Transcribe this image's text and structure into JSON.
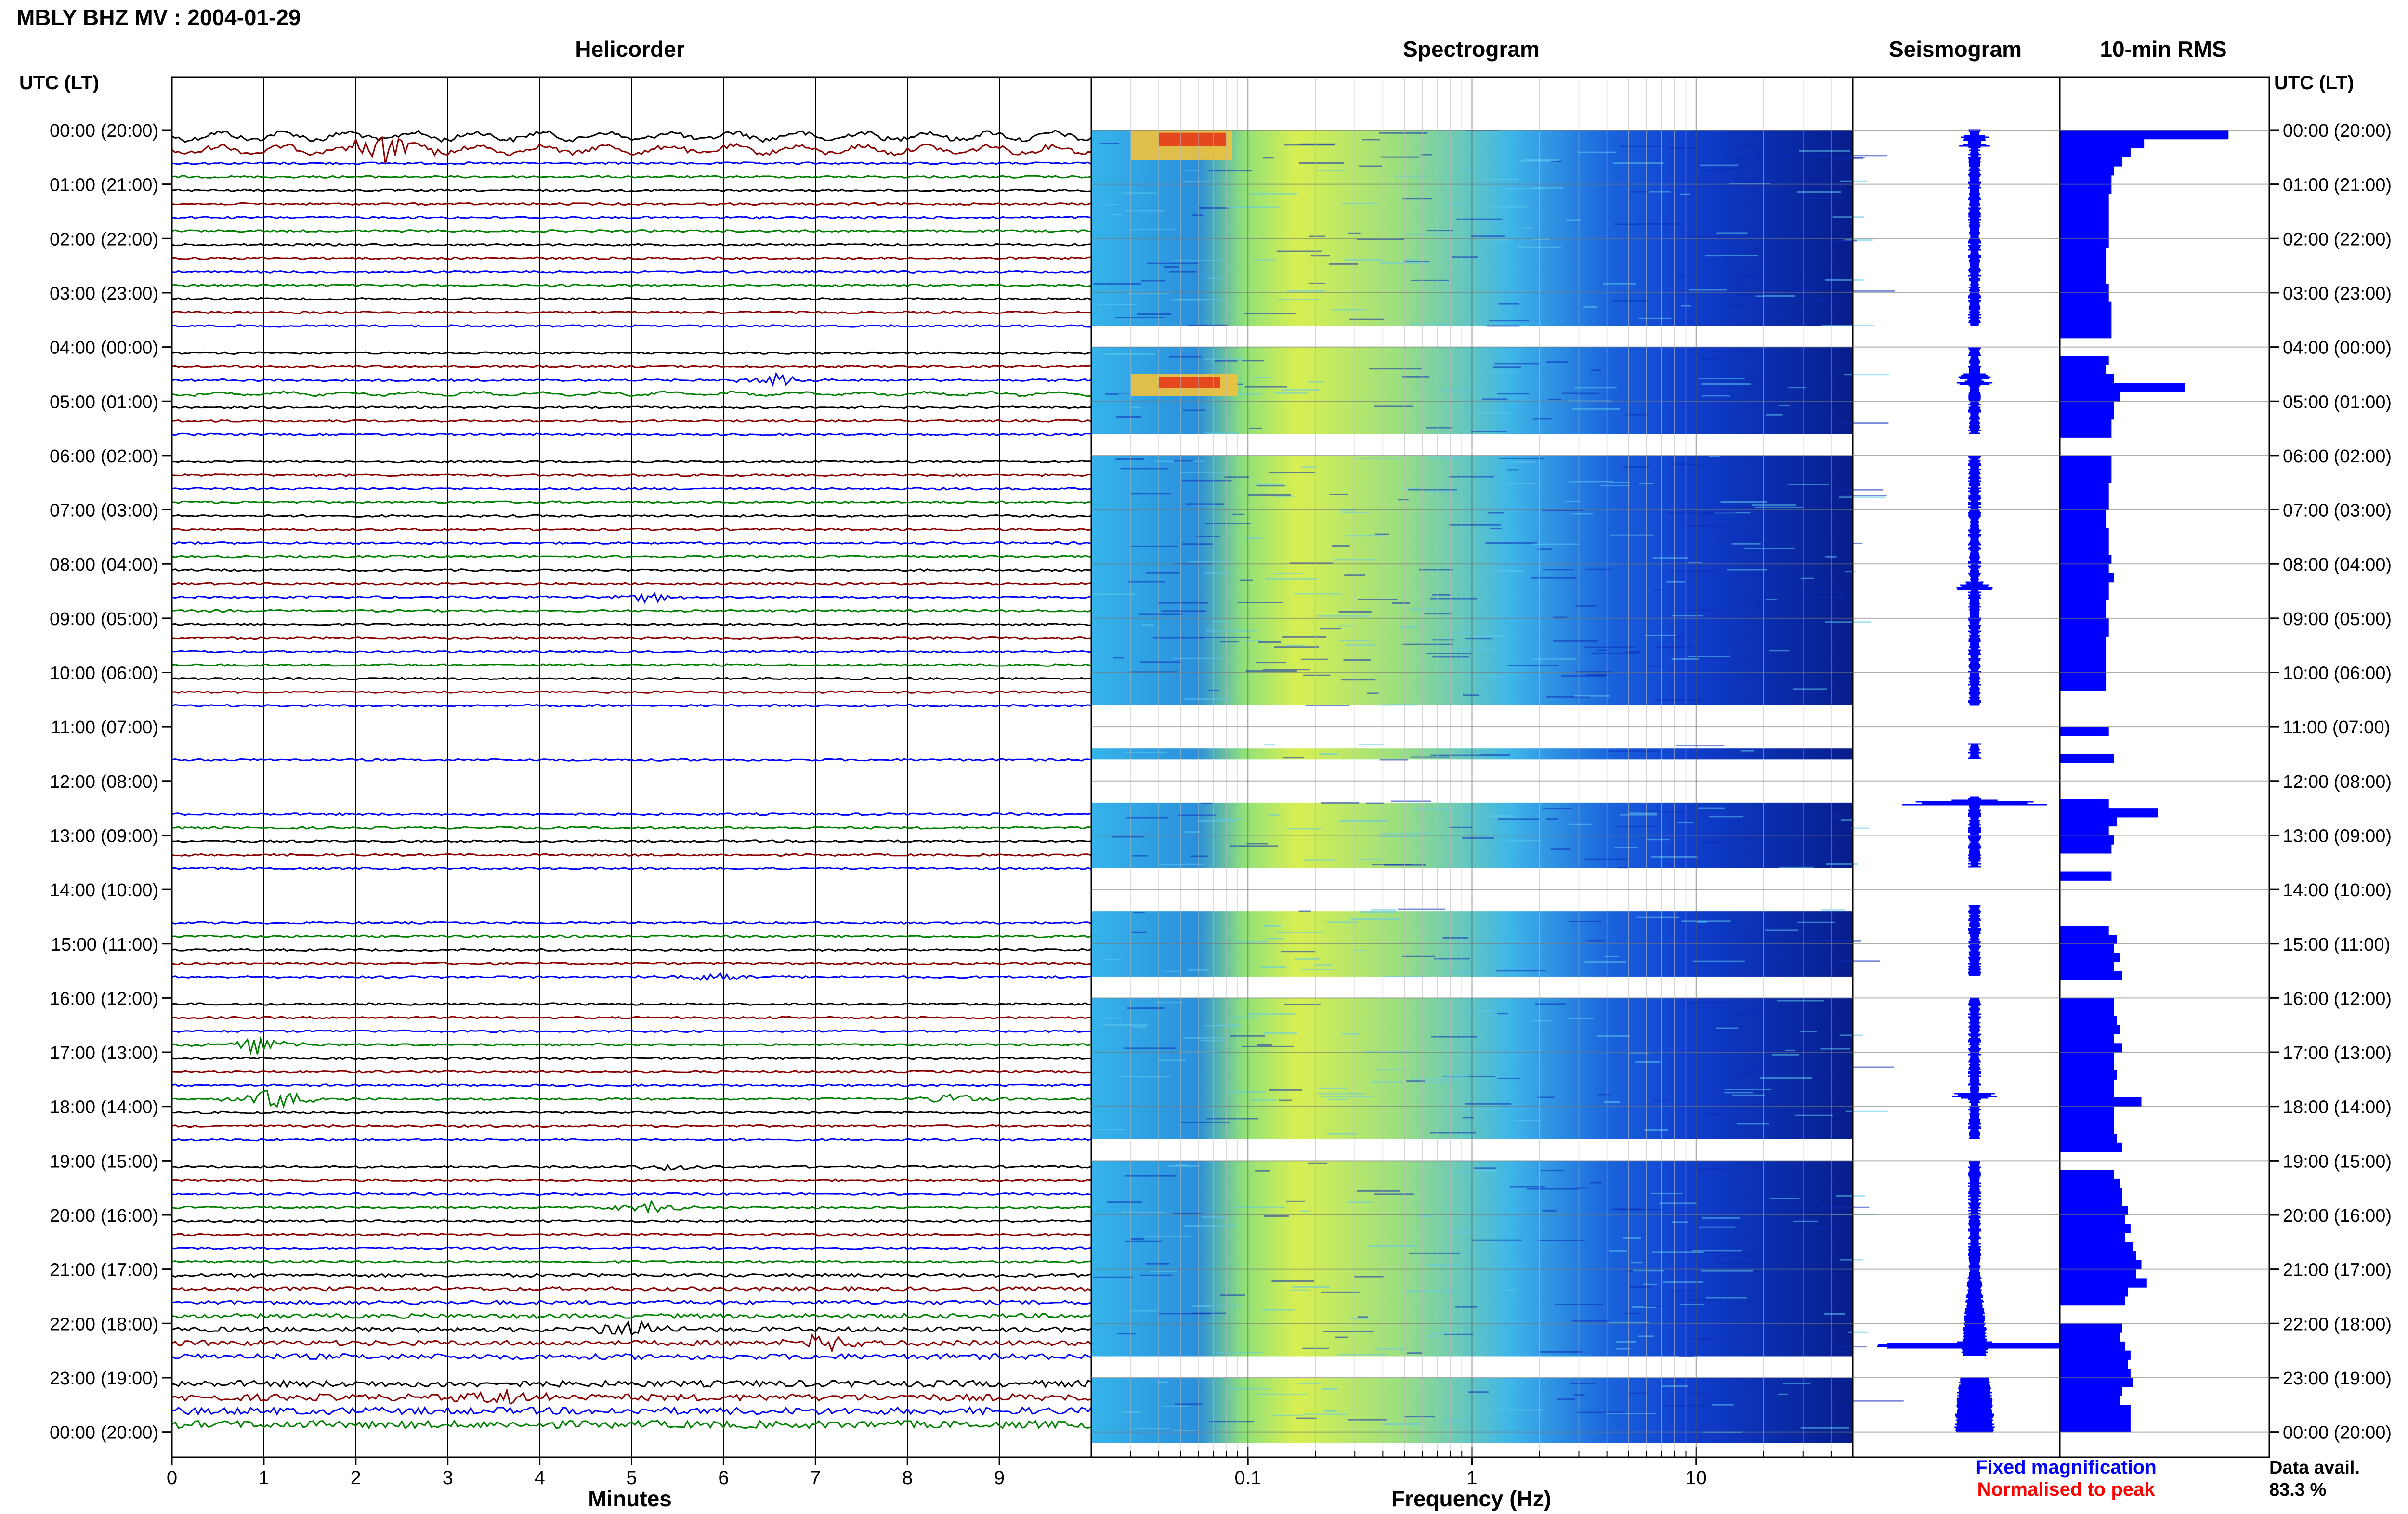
{
  "header": {
    "title": "MBLY BHZ MV : 2004-01-29",
    "left_axis_label": "UTC (LT)",
    "right_axis_label": "UTC (LT)"
  },
  "panels": {
    "helicorder": "Helicorder",
    "spectrogram": "Spectrogram",
    "seismogram": "Seismogram",
    "rms": "10-min RMS"
  },
  "axes": {
    "helicorder_xlabel": "Minutes",
    "spectrogram_xlabel": "Frequency (Hz)"
  },
  "legend": {
    "fixed": "Fixed magnification",
    "normalised": "Normalised to peak",
    "fixed_color": "#0000ff",
    "normalised_color": "#ff0000"
  },
  "availability": {
    "label": "Data avail.",
    "value": "83.3 %"
  },
  "colors": {
    "trace_cycle": [
      "#000000",
      "#8b0000",
      "#0000ff",
      "#008000"
    ],
    "rms_bar": "#0000ff",
    "seismogram": "#0000ff",
    "spectrogram_low": "#00007f",
    "spectrogram_high": "#ff0000"
  },
  "chart_data": {
    "type": "heatmap",
    "time_ticks": [
      "00:00 (20:00)",
      "01:00 (21:00)",
      "02:00 (22:00)",
      "03:00 (23:00)",
      "04:00 (00:00)",
      "05:00 (01:00)",
      "06:00 (02:00)",
      "07:00 (03:00)",
      "08:00 (04:00)",
      "09:00 (05:00)",
      "10:00 (06:00)",
      "11:00 (07:00)",
      "12:00 (08:00)",
      "13:00 (09:00)",
      "14:00 (10:00)",
      "15:00 (11:00)",
      "16:00 (12:00)",
      "17:00 (13:00)",
      "18:00 (14:00)",
      "19:00 (15:00)",
      "20:00 (16:00)",
      "21:00 (17:00)",
      "22:00 (18:00)",
      "23:00 (19:00)",
      "00:00 (20:00)"
    ],
    "minutes_ticks": [
      "0",
      "1",
      "2",
      "3",
      "4",
      "5",
      "6",
      "7",
      "8",
      "9"
    ],
    "minutes_range": [
      0,
      10
    ],
    "frequency_ticks": [
      "0.1",
      "1",
      "10"
    ],
    "frequency_range_hz": [
      0.02,
      50
    ],
    "frequency_scale": "log",
    "data_gaps_utc": [
      [
        3.6,
        4.0
      ],
      [
        5.6,
        6.0
      ],
      [
        10.6,
        11.3
      ],
      [
        11.6,
        12.3
      ],
      [
        13.6,
        14.3
      ],
      [
        15.6,
        16.0
      ],
      [
        18.6,
        19.0
      ],
      [
        22.6,
        23.0
      ]
    ],
    "rms_10min": [
      3.1,
      1.55,
      1.3,
      1.15,
      1.0,
      0.95,
      0.95,
      0.9,
      0.9,
      0.9,
      0.9,
      0.9,
      0.9,
      0.85,
      0.85,
      0.85,
      0.85,
      0.9,
      0.9,
      0.95,
      0.95,
      0.95,
      0.95,
      null,
      null,
      0.9,
      0.85,
      1.0,
      2.3,
      1.1,
      1.0,
      1.0,
      0.95,
      0.95,
      null,
      null,
      0.95,
      0.95,
      0.95,
      0.9,
      0.9,
      0.9,
      0.85,
      0.85,
      0.9,
      0.9,
      0.9,
      0.95,
      0.9,
      1.0,
      0.9,
      0.9,
      0.85,
      0.85,
      0.9,
      0.9,
      0.85,
      0.85,
      0.85,
      0.85,
      0.85,
      0.85,
      null,
      null,
      null,
      null,
      0.9,
      null,
      null,
      1.0,
      null,
      null,
      null,
      null,
      0.9,
      1.8,
      1.05,
      0.9,
      1.0,
      0.95,
      null,
      null,
      0.95,
      null,
      null,
      null,
      null,
      null,
      0.9,
      1.05,
      1.0,
      1.1,
      1.0,
      1.15,
      null,
      null,
      1.0,
      1.0,
      1.05,
      1.1,
      1.0,
      1.15,
      1.0,
      1.0,
      1.05,
      1.0,
      1.0,
      1.5,
      1.0,
      1.0,
      1.0,
      1.05,
      1.15,
      null,
      null,
      1.0,
      1.1,
      1.15,
      1.15,
      1.25,
      1.2,
      1.3,
      1.2,
      1.35,
      1.4,
      1.5,
      1.4,
      1.6,
      1.25,
      1.2,
      null,
      null,
      1.15,
      1.1,
      1.2,
      1.3,
      1.25,
      1.3,
      1.35,
      1.15,
      1.1,
      1.3,
      1.3,
      1.3
    ]
  }
}
